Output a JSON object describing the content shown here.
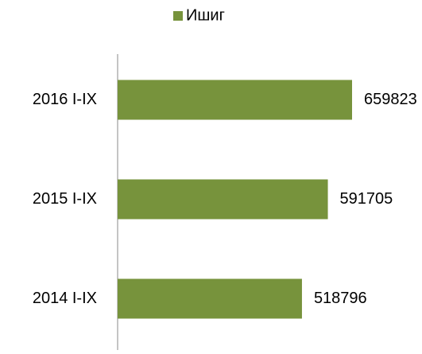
{
  "chart_data": {
    "type": "hbar",
    "categories": [
      "2016 I-IX",
      "2015 I-IX",
      "2014 I-IX"
    ],
    "series": [
      {
        "name": "Ишиг",
        "color": "#77933c",
        "values": [
          659823,
          591705,
          518796
        ]
      }
    ]
  }
}
